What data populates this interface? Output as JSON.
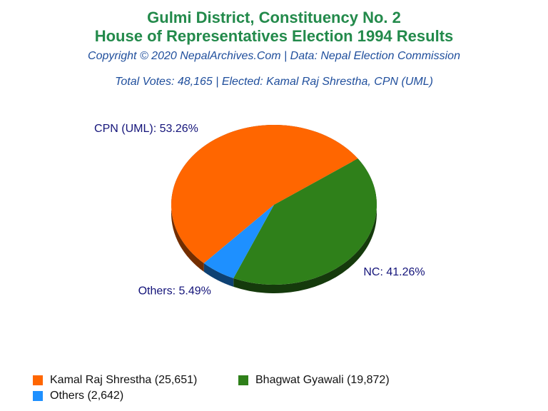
{
  "chart_data": {
    "type": "pie",
    "title": "Gulmi District, Constituency No. 2",
    "subtitle": "House of Representatives Election 1994 Results",
    "source": "Copyright © 2020 NepalArchives.Com | Data: Nepal Election Commission",
    "note": "Total Votes: 48,165 | Elected: Kamal Raj Shrestha, CPN (UML)",
    "categories": [
      "Kamal Raj Shrestha (25,651)",
      "Bhagwat Gyawali (19,872)",
      "Others (2,642)"
    ],
    "values": [
      53.26,
      41.26,
      5.49
    ],
    "value_labels": [
      "CPN (UML): 53.26%",
      "NC: 41.26%",
      "Others: 5.49%"
    ],
    "colors": [
      "#ff6600",
      "#2f801a",
      "#1e90ff"
    ]
  }
}
